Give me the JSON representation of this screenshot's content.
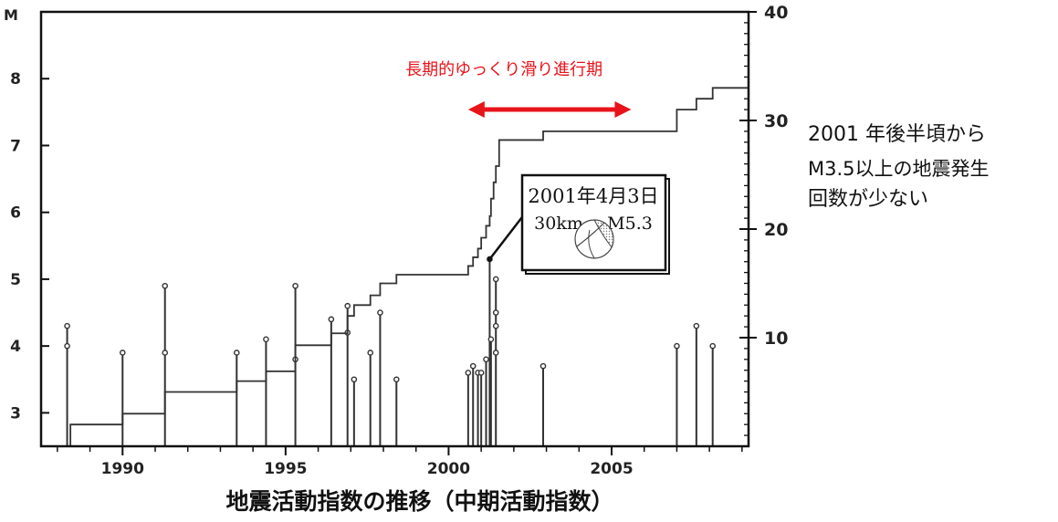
{
  "chart_data": {
    "type": "scatter",
    "title": "",
    "xlabel": "",
    "ylabel": "M",
    "x_ticks": [
      "1990",
      "1995",
      "2000",
      "2005"
    ],
    "xlim": [
      1987.5,
      2009.2
    ],
    "ylim_left": [
      2.5,
      9.0
    ],
    "y_ticks_left": [
      "3",
      "4",
      "5",
      "6",
      "7",
      "8"
    ],
    "ylim_right": [
      0,
      40
    ],
    "y_ticks_right": [
      "10",
      "20",
      "30",
      "40"
    ],
    "grid": false,
    "series": [
      {
        "role": "magnitude_stems",
        "points": [
          {
            "x": 1988.3,
            "y": 4.3
          },
          {
            "x": 1988.3,
            "y": 4.0
          },
          {
            "x": 1990.0,
            "y": 3.9
          },
          {
            "x": 1991.3,
            "y": 4.9
          },
          {
            "x": 1991.3,
            "y": 3.9
          },
          {
            "x": 1993.5,
            "y": 3.9
          },
          {
            "x": 1994.4,
            "y": 4.1
          },
          {
            "x": 1995.3,
            "y": 4.9
          },
          {
            "x": 1995.3,
            "y": 3.8
          },
          {
            "x": 1996.4,
            "y": 4.4
          },
          {
            "x": 1996.9,
            "y": 4.6
          },
          {
            "x": 1996.9,
            "y": 4.2
          },
          {
            "x": 1997.1,
            "y": 3.5
          },
          {
            "x": 1997.6,
            "y": 3.9
          },
          {
            "x": 1997.9,
            "y": 4.5
          },
          {
            "x": 1998.4,
            "y": 3.5
          },
          {
            "x": 2000.6,
            "y": 3.6
          },
          {
            "x": 2000.75,
            "y": 3.7
          },
          {
            "x": 2000.9,
            "y": 3.6
          },
          {
            "x": 2001.0,
            "y": 3.6
          },
          {
            "x": 2001.15,
            "y": 3.8
          },
          {
            "x": 2001.26,
            "y": 5.3
          },
          {
            "x": 2001.3,
            "y": 4.1
          },
          {
            "x": 2001.45,
            "y": 5.0
          },
          {
            "x": 2001.45,
            "y": 4.5
          },
          {
            "x": 2001.45,
            "y": 4.3
          },
          {
            "x": 2001.45,
            "y": 3.9
          },
          {
            "x": 2002.9,
            "y": 3.7
          },
          {
            "x": 2007.0,
            "y": 4.0
          },
          {
            "x": 2007.6,
            "y": 4.3
          },
          {
            "x": 2008.1,
            "y": 4.0
          }
        ]
      },
      {
        "role": "cumulative_step",
        "axis": "right",
        "points": [
          {
            "x": 1988.3,
            "y": 0
          },
          {
            "x": 1988.4,
            "y": 2
          },
          {
            "x": 1990.0,
            "y": 3
          },
          {
            "x": 1991.3,
            "y": 5
          },
          {
            "x": 1993.5,
            "y": 6
          },
          {
            "x": 1994.4,
            "y": 6.9
          },
          {
            "x": 1995.3,
            "y": 9.3
          },
          {
            "x": 1996.4,
            "y": 10.4
          },
          {
            "x": 1996.9,
            "y": 12
          },
          {
            "x": 1997.1,
            "y": 13
          },
          {
            "x": 1997.6,
            "y": 13.9
          },
          {
            "x": 1997.9,
            "y": 15
          },
          {
            "x": 1998.4,
            "y": 15.8
          },
          {
            "x": 2000.6,
            "y": 16.6
          },
          {
            "x": 2000.75,
            "y": 17.4
          },
          {
            "x": 2000.9,
            "y": 18.2
          },
          {
            "x": 2001.0,
            "y": 19.2
          },
          {
            "x": 2001.15,
            "y": 20.3
          },
          {
            "x": 2001.26,
            "y": 21.2
          },
          {
            "x": 2001.3,
            "y": 22.8
          },
          {
            "x": 2001.38,
            "y": 24.3
          },
          {
            "x": 2001.45,
            "y": 25.8
          },
          {
            "x": 2001.55,
            "y": 28.2
          },
          {
            "x": 2002.9,
            "y": 29.0
          },
          {
            "x": 2007.0,
            "y": 31.0
          },
          {
            "x": 2007.6,
            "y": 32.0
          },
          {
            "x": 2008.1,
            "y": 33.0
          },
          {
            "x": 2009.2,
            "y": 33.0
          }
        ]
      }
    ],
    "annotations": {
      "slow_slip_label": "長期的ゆっくり滑り進行期",
      "slow_slip_range": [
        2000.6,
        2005.6
      ],
      "slow_slip_color": "#e8141b",
      "event_line1": "2001年4月3日",
      "event_line2_a": "30km",
      "event_line2_b": "M5.3",
      "event_x": 2001.26,
      "event_y": 5.3
    }
  },
  "side_note": [
    "2001 年後半頃から",
    "M3.5以上の地震発生",
    "回数が少ない"
  ],
  "caption": "地震活動指数の推移（中期活動指数）"
}
